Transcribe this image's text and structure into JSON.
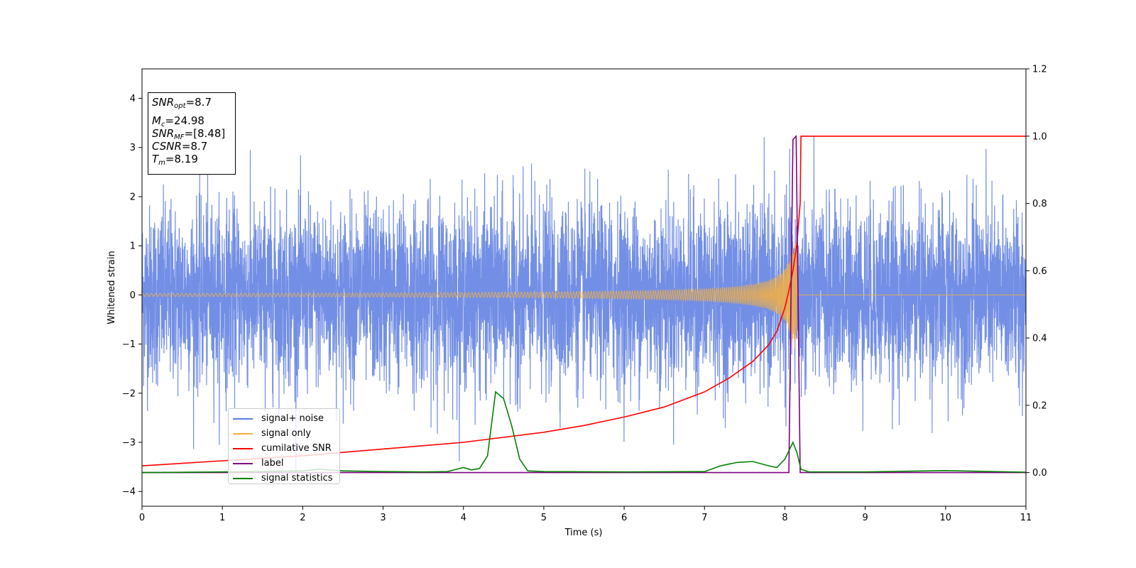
{
  "chart_data": {
    "type": "line",
    "xlabel": "Time (s)",
    "ylabel": "Whitened strain",
    "xlim": [
      0,
      11
    ],
    "ylim_left": [
      -4.3,
      4.6
    ],
    "ylim_right": [
      -0.1,
      1.2
    ],
    "x_ticks": [
      "0",
      "1",
      "2",
      "3",
      "4",
      "5",
      "6",
      "7",
      "8",
      "9",
      "10",
      "11"
    ],
    "y_ticks_left": [
      "−4",
      "−3",
      "−2",
      "−1",
      "0",
      "1",
      "2",
      "3",
      "4"
    ],
    "y_ticks_right": [
      "0.0",
      "0.2",
      "0.4",
      "0.6",
      "0.8",
      "1.0",
      "1.2"
    ],
    "info": {
      "snr_opt": "=8.7",
      "mc": "=24.98",
      "snr_mf": "=[8.48]",
      "csnr": "=8.7",
      "tm": "=8.19"
    },
    "legend_placement": "lower-left",
    "series": [
      {
        "name": "signal+ noise",
        "color": "#5a7be0",
        "axis": "left",
        "description_values": {
          "noise_std": 0.9,
          "peak_max": 3.55,
          "peak_min": -3.85
        }
      },
      {
        "name": "signal only",
        "color": "#f5b041",
        "axis": "left",
        "chirp_start_amp": 0.03,
        "chirp_peak_time": 8.15,
        "chirp_peak_amp": 1.1
      },
      {
        "name": "cumilative SNR",
        "color": "#ff0000",
        "axis": "right",
        "x": [
          0,
          1,
          2,
          3,
          4,
          5,
          5.5,
          6,
          6.5,
          7,
          7.3,
          7.6,
          7.8,
          7.9,
          8.0,
          8.05,
          8.1,
          8.15,
          8.19,
          8.2,
          11
        ],
        "values": [
          0.02,
          0.035,
          0.05,
          0.07,
          0.09,
          0.12,
          0.14,
          0.165,
          0.195,
          0.24,
          0.28,
          0.33,
          0.38,
          0.42,
          0.49,
          0.54,
          0.6,
          0.68,
          0.8,
          1.0,
          1.0
        ]
      },
      {
        "name": "label",
        "color": "#800080",
        "axis": "right",
        "x": [
          0,
          8.05,
          8.1,
          8.14,
          8.19,
          11
        ],
        "values": [
          0.0,
          0.0,
          0.99,
          1.0,
          0.0,
          0.0
        ]
      },
      {
        "name": "signal statistics",
        "color": "#008000",
        "axis": "right",
        "x": [
          0,
          1,
          2,
          2.2,
          2.5,
          3,
          3.5,
          3.8,
          4.0,
          4.1,
          4.2,
          4.3,
          4.4,
          4.5,
          4.6,
          4.7,
          4.8,
          5,
          6,
          7,
          7.2,
          7.4,
          7.6,
          7.8,
          7.9,
          8.0,
          8.1,
          8.15,
          8.2,
          8.3,
          9,
          10,
          11
        ],
        "values": [
          0.0,
          0.002,
          0.005,
          0.01,
          0.005,
          0.003,
          0.002,
          0.003,
          0.015,
          0.008,
          0.012,
          0.05,
          0.24,
          0.22,
          0.14,
          0.04,
          0.005,
          0.003,
          0.002,
          0.003,
          0.02,
          0.03,
          0.033,
          0.02,
          0.015,
          0.04,
          0.09,
          0.06,
          0.01,
          0.002,
          0.002,
          0.006,
          0.001
        ]
      }
    ]
  }
}
